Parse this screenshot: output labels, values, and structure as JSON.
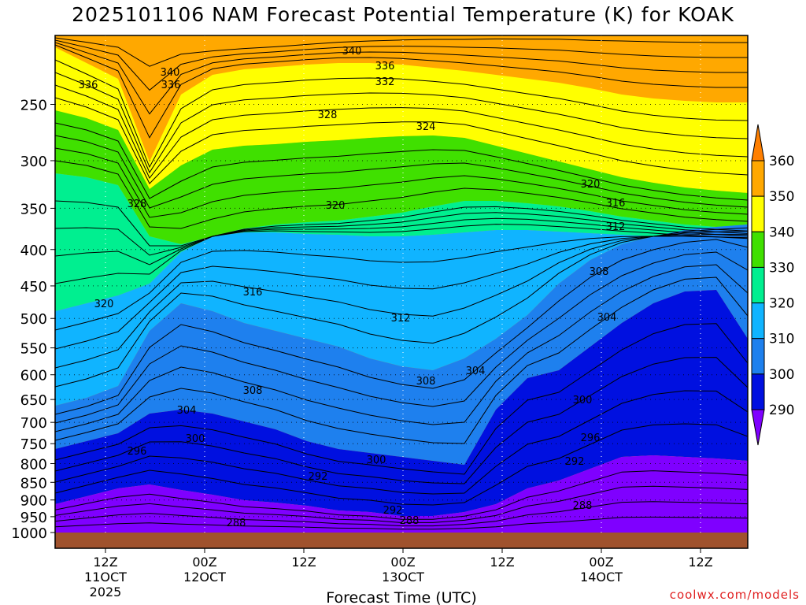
{
  "title": "2025101106 NAM Forecast Potential Temperature (K) for KOAK",
  "credit": "coolwx.com/models",
  "chart_data": {
    "type": "heatmap",
    "title": "2025101106 NAM Forecast Potential Temperature (K) for KOAK",
    "xlabel": "Forecast Time (UTC)",
    "ylabel": "",
    "y_axis_scale": "log-pressure, inverted (hPa)",
    "grid": true,
    "y_ticks": [
      250,
      300,
      350,
      400,
      450,
      500,
      550,
      600,
      650,
      700,
      750,
      800,
      850,
      900,
      950,
      1000
    ],
    "x_ticks": [
      {
        "l1": "12Z",
        "l2": "11OCT",
        "l3": "2025"
      },
      {
        "l1": "00Z",
        "l2": "12OCT",
        "l3": ""
      },
      {
        "l1": "12Z",
        "l2": "",
        "l3": ""
      },
      {
        "l1": "00Z",
        "l2": "13OCT",
        "l3": ""
      },
      {
        "l1": "12Z",
        "l2": "",
        "l3": ""
      },
      {
        "l1": "00Z",
        "l2": "14OCT",
        "l3": ""
      },
      {
        "l1": "12Z",
        "l2": "",
        "l3": ""
      }
    ],
    "colorbar": {
      "labels": [
        "360",
        "350",
        "340",
        "330",
        "320",
        "310",
        "300",
        "290"
      ],
      "bins": [
        "#ff7f00",
        "#ffa800",
        "#ffff00",
        "#40e000",
        "#00ef90",
        "#10b4ff",
        "#1e80ee",
        "#0010e0",
        "#7f00ff"
      ]
    },
    "contour_labels": [
      "340",
      "336",
      "332",
      "328",
      "324",
      "320",
      "316",
      "312",
      "308",
      "304",
      "300",
      "296",
      "292",
      "288"
    ],
    "fill_colors": {
      "orange": "#ffa800",
      "yellow": "#ffff00",
      "green": "#40e000",
      "teal": "#00ef90",
      "lightblue": "#10b4ff",
      "midblue": "#1e80ee",
      "blue": "#0010e0",
      "purple": "#7f00ff",
      "ground": "#a0522d"
    }
  }
}
